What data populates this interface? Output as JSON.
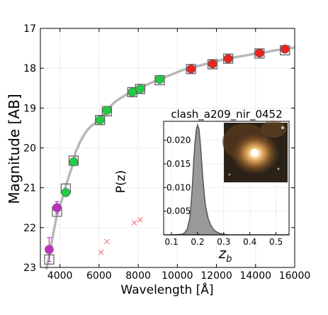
{
  "chart_data": [
    {
      "type": "scatter",
      "xlabel": "Wavelength [Å]",
      "ylabel": "Magnitude [AB]",
      "xlim": [
        3000,
        16000
      ],
      "ylim": [
        23,
        17
      ],
      "y_inverted": true,
      "grid": true,
      "x_ticks": [
        "4000",
        "6000",
        "8000",
        "10000",
        "12000",
        "14000",
        "16000"
      ],
      "y_ticks": [
        "17",
        "18",
        "19",
        "20",
        "21",
        "22",
        "23"
      ],
      "colors": {
        "uv": "#c22fc0",
        "optical": "#22cc44",
        "nir": "#ee2222",
        "model_sed": "#b8b8b8",
        "model_box": "#666666",
        "upper_limit": "#f08080",
        "marker_edge": "#555555"
      },
      "model_sed": [
        [
          3300,
          23.05
        ],
        [
          3400,
          22.85
        ],
        [
          3500,
          22.6
        ],
        [
          3600,
          22.3
        ],
        [
          3700,
          22.05
        ],
        [
          3800,
          21.8
        ],
        [
          3900,
          21.55
        ],
        [
          4000,
          21.45
        ],
        [
          4100,
          21.3
        ],
        [
          4200,
          21.15
        ],
        [
          4300,
          20.95
        ],
        [
          4400,
          20.8
        ],
        [
          4500,
          20.65
        ],
        [
          4600,
          20.5
        ],
        [
          4700,
          20.3
        ],
        [
          4800,
          20.1
        ],
        [
          4900,
          20.0
        ],
        [
          5000,
          19.88
        ],
        [
          5200,
          19.7
        ],
        [
          5400,
          19.55
        ],
        [
          5600,
          19.45
        ],
        [
          5800,
          19.38
        ],
        [
          6000,
          19.3
        ],
        [
          6200,
          19.2
        ],
        [
          6400,
          19.05
        ],
        [
          6600,
          18.95
        ],
        [
          6800,
          18.85
        ],
        [
          7000,
          18.78
        ],
        [
          7200,
          18.72
        ],
        [
          7400,
          18.66
        ],
        [
          7600,
          18.6
        ],
        [
          7800,
          18.55
        ],
        [
          8000,
          18.5
        ],
        [
          8300,
          18.45
        ],
        [
          8600,
          18.38
        ],
        [
          9000,
          18.3
        ],
        [
          9400,
          18.22
        ],
        [
          9800,
          18.14
        ],
        [
          10200,
          18.06
        ],
        [
          10600,
          18.0
        ],
        [
          11000,
          17.95
        ],
        [
          11400,
          17.9
        ],
        [
          11800,
          17.85
        ],
        [
          12200,
          17.8
        ],
        [
          12600,
          17.75
        ],
        [
          13000,
          17.72
        ],
        [
          13500,
          17.68
        ],
        [
          14000,
          17.63
        ],
        [
          14500,
          17.6
        ],
        [
          15000,
          17.55
        ],
        [
          15500,
          17.52
        ],
        [
          16000,
          17.48
        ]
      ],
      "model_points": [
        {
          "x": 3450,
          "y": 22.8
        },
        {
          "x": 3850,
          "y": 21.6
        },
        {
          "x": 4300,
          "y": 21.02
        },
        {
          "x": 4700,
          "y": 20.32
        },
        {
          "x": 6050,
          "y": 19.3
        },
        {
          "x": 6400,
          "y": 19.08
        },
        {
          "x": 7700,
          "y": 18.6
        },
        {
          "x": 8100,
          "y": 18.52
        },
        {
          "x": 9100,
          "y": 18.3
        },
        {
          "x": 10700,
          "y": 18.02
        },
        {
          "x": 11800,
          "y": 17.9
        },
        {
          "x": 12600,
          "y": 17.76
        },
        {
          "x": 14200,
          "y": 17.63
        },
        {
          "x": 15500,
          "y": 17.55
        }
      ],
      "observed": [
        {
          "x": 3450,
          "y": 22.55,
          "err": 0.3,
          "band": "uv"
        },
        {
          "x": 3850,
          "y": 21.5,
          "err": 0.15,
          "band": "uv"
        },
        {
          "x": 4300,
          "y": 21.12,
          "err": 0.05,
          "band": "optical"
        },
        {
          "x": 4700,
          "y": 20.35,
          "err": 0.04,
          "band": "optical"
        },
        {
          "x": 6050,
          "y": 19.3,
          "err": 0.03,
          "band": "optical"
        },
        {
          "x": 6400,
          "y": 19.06,
          "err": 0.03,
          "band": "optical"
        },
        {
          "x": 7700,
          "y": 18.6,
          "err": 0.03,
          "band": "optical"
        },
        {
          "x": 8100,
          "y": 18.52,
          "err": 0.03,
          "band": "optical"
        },
        {
          "x": 9100,
          "y": 18.28,
          "err": 0.03,
          "band": "optical"
        },
        {
          "x": 10700,
          "y": 18.02,
          "err": 0.03,
          "band": "nir"
        },
        {
          "x": 11800,
          "y": 17.89,
          "err": 0.03,
          "band": "nir"
        },
        {
          "x": 12600,
          "y": 17.76,
          "err": 0.03,
          "band": "nir"
        },
        {
          "x": 14200,
          "y": 17.62,
          "err": 0.03,
          "band": "nir"
        },
        {
          "x": 15500,
          "y": 17.52,
          "err": 0.03,
          "band": "nir"
        }
      ],
      "upper_limits": [
        {
          "x": 6100,
          "y": 22.62
        },
        {
          "x": 6400,
          "y": 22.35
        },
        {
          "x": 7800,
          "y": 21.88
        },
        {
          "x": 8100,
          "y": 21.8
        }
      ]
    },
    {
      "type": "area",
      "title": "clash_a209_nir_0452",
      "xlabel": "z_b",
      "ylabel": "P(z)",
      "xlim": [
        0.07,
        0.55
      ],
      "ylim": [
        0,
        0.024
      ],
      "grid": true,
      "x_ticks": [
        "0.1",
        "0.2",
        "0.3",
        "0.4",
        "0.5"
      ],
      "y_ticks": [
        "0.005",
        "0.010",
        "0.015",
        "0.020"
      ],
      "colors": {
        "fill": "#999999",
        "stroke": "#555555"
      },
      "pz": [
        [
          0.07,
          0.0
        ],
        [
          0.1,
          0.0
        ],
        [
          0.14,
          0.0001
        ],
        [
          0.15,
          0.0004
        ],
        [
          0.16,
          0.0012
        ],
        [
          0.17,
          0.0035
        ],
        [
          0.175,
          0.0065
        ],
        [
          0.18,
          0.0105
        ],
        [
          0.185,
          0.0155
        ],
        [
          0.19,
          0.0195
        ],
        [
          0.195,
          0.0222
        ],
        [
          0.2,
          0.0232
        ],
        [
          0.205,
          0.0224
        ],
        [
          0.21,
          0.0196
        ],
        [
          0.215,
          0.0158
        ],
        [
          0.22,
          0.012
        ],
        [
          0.225,
          0.0088
        ],
        [
          0.23,
          0.0062
        ],
        [
          0.24,
          0.0035
        ],
        [
          0.25,
          0.0021
        ],
        [
          0.26,
          0.0012
        ],
        [
          0.27,
          0.0007
        ],
        [
          0.28,
          0.0004
        ],
        [
          0.3,
          0.0001
        ],
        [
          0.32,
          0.0
        ],
        [
          0.55,
          0.0
        ]
      ]
    }
  ]
}
